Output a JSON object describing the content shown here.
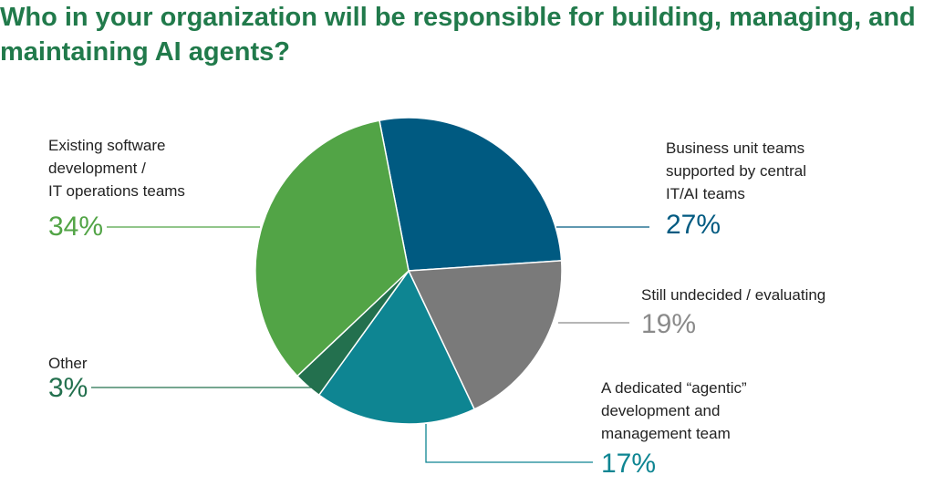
{
  "title": "Who in your organization will be responsible for building, managing, and maintaining AI agents?",
  "chart_data": {
    "type": "pie",
    "title": "Who in your organization will be responsible for building, managing, and maintaining AI agents?",
    "slices": [
      {
        "label": "Business unit teams supported by central IT/AI teams",
        "value": 27,
        "display": "27%",
        "color": "#005a81"
      },
      {
        "label": "Still undecided / evaluating",
        "value": 19,
        "display": "19%",
        "color": "#7a7a7a"
      },
      {
        "label": "A dedicated “agentic” development and management team",
        "value": 17,
        "display": "17%",
        "color": "#0e8592"
      },
      {
        "label": "Other",
        "value": 3,
        "display": "3%",
        "color": "#23704e"
      },
      {
        "label": "Existing software development / IT operations teams",
        "value": 34,
        "display": "34%",
        "color": "#52a446"
      }
    ],
    "label_colors": [
      "#005a81",
      "#8a8a8a",
      "#0e8592",
      "#23704e",
      "#52a446"
    ]
  }
}
